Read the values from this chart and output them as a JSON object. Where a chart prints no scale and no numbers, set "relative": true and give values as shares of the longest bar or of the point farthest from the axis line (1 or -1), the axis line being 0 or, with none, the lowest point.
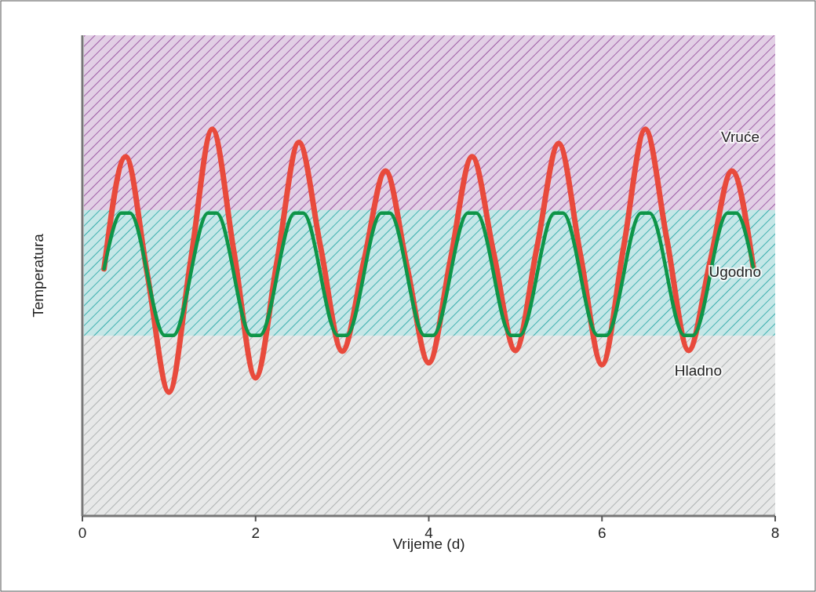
{
  "chart_data": {
    "type": "line",
    "relative": true,
    "xlabel": "Vrijeme (d)",
    "ylabel": "Temperatura",
    "xlim": [
      0,
      8
    ],
    "xticks": [
      0,
      2,
      4,
      6,
      8
    ],
    "tick_labels": "x",
    "grid": false,
    "marker": "none",
    "line_style": "solid",
    "bands": [
      {
        "axis": "y",
        "from": 0.791,
        "to": 1.243,
        "label": "Vruće",
        "color": "#a060a8"
      },
      {
        "axis": "y",
        "from": 0.466,
        "to": 0.791,
        "label": "Ugodno",
        "color": "#40b0b0"
      },
      {
        "axis": "y",
        "from": 0,
        "to": 0.466,
        "label": "Hladno",
        "color": "#b0b4b4"
      }
    ],
    "series": [
      {
        "color": "#e84a3c",
        "x": [
          0.25,
          0.5,
          0.75,
          1,
          1.25,
          1.5,
          1.75,
          2,
          2.25,
          2.5,
          2.75,
          3,
          3.25,
          3.5,
          3.75,
          4,
          4.25,
          4.5,
          4.75,
          5,
          5.25,
          5.5,
          5.75,
          6,
          6.25,
          6.5,
          6.75,
          7,
          7.25,
          7.5,
          7.75
        ],
        "values": [
          0.639,
          0.929,
          0.625,
          0.32,
          0.66,
          1,
          0.683,
          0.357,
          0.662,
          0.966,
          0.696,
          0.426,
          0.659,
          0.892,
          0.644,
          0.396,
          0.663,
          0.929,
          0.679,
          0.428,
          0.696,
          0.963,
          0.677,
          0.391,
          0.696,
          1,
          0.714,
          0.428,
          0.66,
          0.892,
          0.639
        ]
      },
      {
        "color": "#0e9548",
        "x": [
          0.25,
          0.45,
          0.55,
          0.95,
          1.05,
          1.45,
          1.55,
          1.95,
          2.05,
          2.45,
          2.55,
          2.95,
          3.05,
          3.45,
          3.55,
          3.95,
          4.05,
          4.45,
          4.55,
          4.95,
          5.05,
          5.45,
          5.55,
          5.95,
          6.05,
          6.45,
          6.55,
          6.95,
          7.05,
          7.45,
          7.55,
          7.75
        ],
        "values": [
          0.639,
          0.783,
          0.783,
          0.467,
          0.467,
          0.783,
          0.783,
          0.467,
          0.467,
          0.783,
          0.783,
          0.467,
          0.467,
          0.783,
          0.783,
          0.467,
          0.467,
          0.783,
          0.783,
          0.467,
          0.467,
          0.783,
          0.783,
          0.467,
          0.467,
          0.783,
          0.783,
          0.467,
          0.467,
          0.783,
          0.783,
          0.639
        ]
      }
    ]
  }
}
